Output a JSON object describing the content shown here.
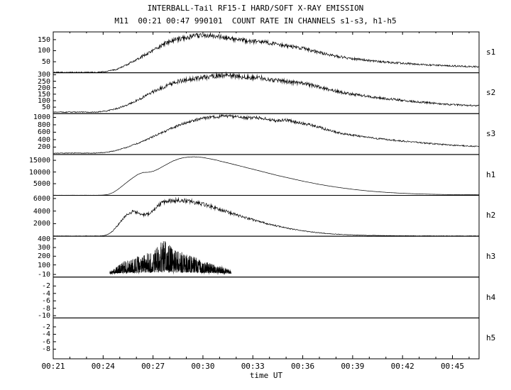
{
  "chart_data": {
    "type": "line",
    "title": "INTERBALL-Tail RF15-I HARD/SOFT X-RAY EMISSION",
    "subtitle": "M11  00:21 00:47 990101  COUNT RATE IN CHANNELS s1-s3, h1-h5",
    "xlabel": "time UT",
    "grid": false,
    "legend": "none",
    "colors": {
      "line": "#000000",
      "background": "#ffffff",
      "axis": "#000000"
    },
    "x_axis": {
      "label": "time UT",
      "range_minutes": [
        21,
        46.6
      ],
      "minor_step_minutes": 1,
      "major_ticks": [
        {
          "t": 21,
          "label": "00:21"
        },
        {
          "t": 24,
          "label": "00:24"
        },
        {
          "t": 27,
          "label": "00:27"
        },
        {
          "t": 30,
          "label": "00:30"
        },
        {
          "t": 33,
          "label": "00:33"
        },
        {
          "t": 36,
          "label": "00:36"
        },
        {
          "t": 39,
          "label": "00:39"
        },
        {
          "t": 42,
          "label": "00:42"
        },
        {
          "t": 45,
          "label": "00:45"
        }
      ]
    },
    "panels": [
      {
        "channel": "s1",
        "ylim": [
          0,
          185
        ],
        "yticks": [
          50,
          100,
          150
        ],
        "mode": "line",
        "noise_base": 2,
        "noise_rel": 0.055,
        "points": [
          [
            21,
            2
          ],
          [
            23.6,
            2
          ],
          [
            24.2,
            6
          ],
          [
            24.8,
            15
          ],
          [
            25.4,
            35
          ],
          [
            26,
            60
          ],
          [
            26.6,
            85
          ],
          [
            27.2,
            110
          ],
          [
            27.8,
            135
          ],
          [
            28.4,
            150
          ],
          [
            29,
            160
          ],
          [
            29.6,
            168
          ],
          [
            30.2,
            170
          ],
          [
            30.8,
            165
          ],
          [
            31.4,
            158
          ],
          [
            32,
            150
          ],
          [
            32.6,
            145
          ],
          [
            33.2,
            140
          ],
          [
            33.8,
            138
          ],
          [
            34.4,
            130
          ],
          [
            35,
            122
          ],
          [
            35.6,
            115
          ],
          [
            36.2,
            108
          ],
          [
            36.8,
            95
          ],
          [
            37.4,
            85
          ],
          [
            38,
            75
          ],
          [
            38.6,
            68
          ],
          [
            39.2,
            62
          ],
          [
            40,
            55
          ],
          [
            41,
            48
          ],
          [
            42,
            43
          ],
          [
            43,
            38
          ],
          [
            44,
            34
          ],
          [
            45,
            31
          ],
          [
            46.6,
            27
          ]
        ]
      },
      {
        "channel": "s2",
        "ylim": [
          0,
          315
        ],
        "yticks": [
          50,
          100,
          150,
          200,
          250,
          300
        ],
        "mode": "line",
        "noise_base": 3,
        "noise_rel": 0.055,
        "points": [
          [
            21,
            12
          ],
          [
            23.6,
            12
          ],
          [
            24.2,
            20
          ],
          [
            24.8,
            38
          ],
          [
            25.4,
            65
          ],
          [
            26,
            100
          ],
          [
            26.6,
            140
          ],
          [
            27.2,
            180
          ],
          [
            27.8,
            215
          ],
          [
            28.4,
            245
          ],
          [
            29,
            262
          ],
          [
            29.6,
            272
          ],
          [
            30.2,
            280
          ],
          [
            30.8,
            290
          ],
          [
            31.4,
            298
          ],
          [
            32,
            288
          ],
          [
            32.6,
            280
          ],
          [
            33.2,
            282
          ],
          [
            33.8,
            270
          ],
          [
            34.4,
            256
          ],
          [
            35,
            246
          ],
          [
            35.6,
            238
          ],
          [
            36.2,
            228
          ],
          [
            36.8,
            210
          ],
          [
            37.4,
            192
          ],
          [
            38,
            174
          ],
          [
            38.6,
            158
          ],
          [
            39.2,
            146
          ],
          [
            40,
            132
          ],
          [
            41,
            116
          ],
          [
            42,
            102
          ],
          [
            43,
            90
          ],
          [
            44,
            79
          ],
          [
            45,
            69
          ],
          [
            46.6,
            60
          ]
        ]
      },
      {
        "channel": "s3",
        "ylim": [
          0,
          1100
        ],
        "yticks": [
          200,
          400,
          600,
          800,
          1000
        ],
        "mode": "line",
        "noise_base": 8,
        "noise_rel": 0.035,
        "points": [
          [
            21,
            35
          ],
          [
            23.6,
            38
          ],
          [
            24.2,
            60
          ],
          [
            24.8,
            110
          ],
          [
            25.4,
            190
          ],
          [
            26,
            290
          ],
          [
            26.6,
            400
          ],
          [
            27.2,
            520
          ],
          [
            27.8,
            640
          ],
          [
            28.4,
            760
          ],
          [
            29,
            860
          ],
          [
            29.6,
            940
          ],
          [
            30.2,
            990
          ],
          [
            30.8,
            1020
          ],
          [
            31.4,
            1040
          ],
          [
            32,
            1010
          ],
          [
            32.6,
            985
          ],
          [
            33.2,
            995
          ],
          [
            33.8,
            960
          ],
          [
            34.4,
            905
          ],
          [
            35,
            930
          ],
          [
            35.6,
            870
          ],
          [
            36.2,
            820
          ],
          [
            36.8,
            760
          ],
          [
            37.4,
            680
          ],
          [
            38,
            600
          ],
          [
            38.6,
            545
          ],
          [
            39.2,
            505
          ],
          [
            40,
            455
          ],
          [
            41,
            405
          ],
          [
            42,
            360
          ],
          [
            43,
            320
          ],
          [
            44,
            285
          ],
          [
            45,
            250
          ],
          [
            46.6,
            215
          ]
        ]
      },
      {
        "channel": "h1",
        "ylim": [
          0,
          17500
        ],
        "yticks": [
          5000,
          10000,
          15000
        ],
        "mode": "line",
        "noise_base": 12,
        "noise_rel": 0.003,
        "points": [
          [
            21,
            60
          ],
          [
            23.7,
            60
          ],
          [
            24,
            120
          ],
          [
            24.3,
            400
          ],
          [
            24.6,
            1200
          ],
          [
            24.9,
            2600
          ],
          [
            25.2,
            4300
          ],
          [
            25.5,
            6000
          ],
          [
            25.8,
            7600
          ],
          [
            26.1,
            9000
          ],
          [
            26.4,
            9800
          ],
          [
            26.7,
            9900
          ],
          [
            27,
            10300
          ],
          [
            27.3,
            11200
          ],
          [
            27.6,
            12400
          ],
          [
            27.9,
            13600
          ],
          [
            28.2,
            14700
          ],
          [
            28.5,
            15500
          ],
          [
            28.8,
            16100
          ],
          [
            29.1,
            16400
          ],
          [
            29.4,
            16500
          ],
          [
            29.7,
            16450
          ],
          [
            30,
            16200
          ],
          [
            30.4,
            15700
          ],
          [
            30.8,
            15100
          ],
          [
            31.2,
            14400
          ],
          [
            31.6,
            13700
          ],
          [
            32,
            13000
          ],
          [
            32.5,
            12100
          ],
          [
            33,
            11200
          ],
          [
            33.5,
            10300
          ],
          [
            34,
            9400
          ],
          [
            34.5,
            8500
          ],
          [
            35,
            7700
          ],
          [
            35.5,
            6900
          ],
          [
            36,
            6100
          ],
          [
            36.5,
            5400
          ],
          [
            37,
            4700
          ],
          [
            37.5,
            4100
          ],
          [
            38,
            3550
          ],
          [
            38.5,
            3050
          ],
          [
            39,
            2600
          ],
          [
            39.5,
            2200
          ],
          [
            40,
            1850
          ],
          [
            40.5,
            1550
          ],
          [
            41,
            1300
          ],
          [
            41.5,
            1080
          ],
          [
            42,
            900
          ],
          [
            42.5,
            750
          ],
          [
            43,
            620
          ],
          [
            43.5,
            520
          ],
          [
            44,
            440
          ],
          [
            44.5,
            380
          ],
          [
            45,
            330
          ],
          [
            45.5,
            290
          ],
          [
            46.6,
            240
          ]
        ]
      },
      {
        "channel": "h2",
        "ylim": [
          0,
          6500
        ],
        "yticks": [
          2000,
          4000,
          6000
        ],
        "mode": "line",
        "noise_base": 25,
        "noise_rel": 0.06,
        "points": [
          [
            21,
            40
          ],
          [
            23.7,
            40
          ],
          [
            24,
            80
          ],
          [
            24.3,
            300
          ],
          [
            24.6,
            900
          ],
          [
            24.9,
            1800
          ],
          [
            25.2,
            2800
          ],
          [
            25.5,
            3600
          ],
          [
            25.8,
            3900
          ],
          [
            26.1,
            3700
          ],
          [
            26.4,
            3400
          ],
          [
            26.7,
            3500
          ],
          [
            27,
            4000
          ],
          [
            27.3,
            4800
          ],
          [
            27.6,
            5400
          ],
          [
            27.9,
            5600
          ],
          [
            28.2,
            5650
          ],
          [
            28.5,
            5700
          ],
          [
            28.8,
            5650
          ],
          [
            29.1,
            5600
          ],
          [
            29.4,
            5450
          ],
          [
            29.7,
            5300
          ],
          [
            30,
            5100
          ],
          [
            30.4,
            4800
          ],
          [
            30.8,
            4450
          ],
          [
            31.2,
            4100
          ],
          [
            31.6,
            3750
          ],
          [
            32,
            3400
          ],
          [
            32.5,
            3000
          ],
          [
            33,
            2600
          ],
          [
            33.5,
            2250
          ],
          [
            34,
            1900
          ],
          [
            34.5,
            1600
          ],
          [
            35,
            1320
          ],
          [
            35.5,
            1080
          ],
          [
            36,
            870
          ],
          [
            36.5,
            690
          ],
          [
            37,
            540
          ],
          [
            37.5,
            420
          ],
          [
            38,
            330
          ],
          [
            38.5,
            260
          ],
          [
            39,
            200
          ],
          [
            39.5,
            160
          ],
          [
            40,
            130
          ],
          [
            41,
            95
          ],
          [
            42,
            75
          ],
          [
            43,
            60
          ],
          [
            44,
            55
          ],
          [
            45,
            50
          ],
          [
            46.6,
            45
          ]
        ]
      },
      {
        "channel": "h3",
        "ylim": [
          -40,
          430
        ],
        "yticks": [
          -10,
          100,
          200,
          300,
          400
        ],
        "mode": "burst",
        "noise_base": 0,
        "noise_rel": 0,
        "burst_range": [
          24.4,
          31.7
        ],
        "points": [
          [
            24.4,
            15
          ],
          [
            24.8,
            60
          ],
          [
            25.2,
            100
          ],
          [
            25.6,
            130
          ],
          [
            26,
            150
          ],
          [
            26.4,
            165
          ],
          [
            26.8,
            190
          ],
          [
            27.2,
            230
          ],
          [
            27.5,
            280
          ],
          [
            27.7,
            310
          ],
          [
            27.9,
            260
          ],
          [
            28.2,
            230
          ],
          [
            28.6,
            200
          ],
          [
            29,
            175
          ],
          [
            29.4,
            150
          ],
          [
            29.8,
            130
          ],
          [
            30.2,
            105
          ],
          [
            30.6,
            85
          ],
          [
            31,
            65
          ],
          [
            31.4,
            45
          ],
          [
            31.7,
            25
          ]
        ]
      },
      {
        "channel": "h4",
        "ylim": [
          -10.6,
          0.4
        ],
        "yticks": [
          -2,
          -4,
          -6,
          -8,
          -10
        ],
        "mode": "none",
        "noise_base": 0,
        "noise_rel": 0,
        "points": []
      },
      {
        "channel": "h5",
        "ylim": [
          -10.6,
          0.4
        ],
        "yticks": [
          -2,
          -4,
          -6,
          -8
        ],
        "mode": "none",
        "noise_base": 0,
        "noise_rel": 0,
        "points": []
      }
    ]
  }
}
